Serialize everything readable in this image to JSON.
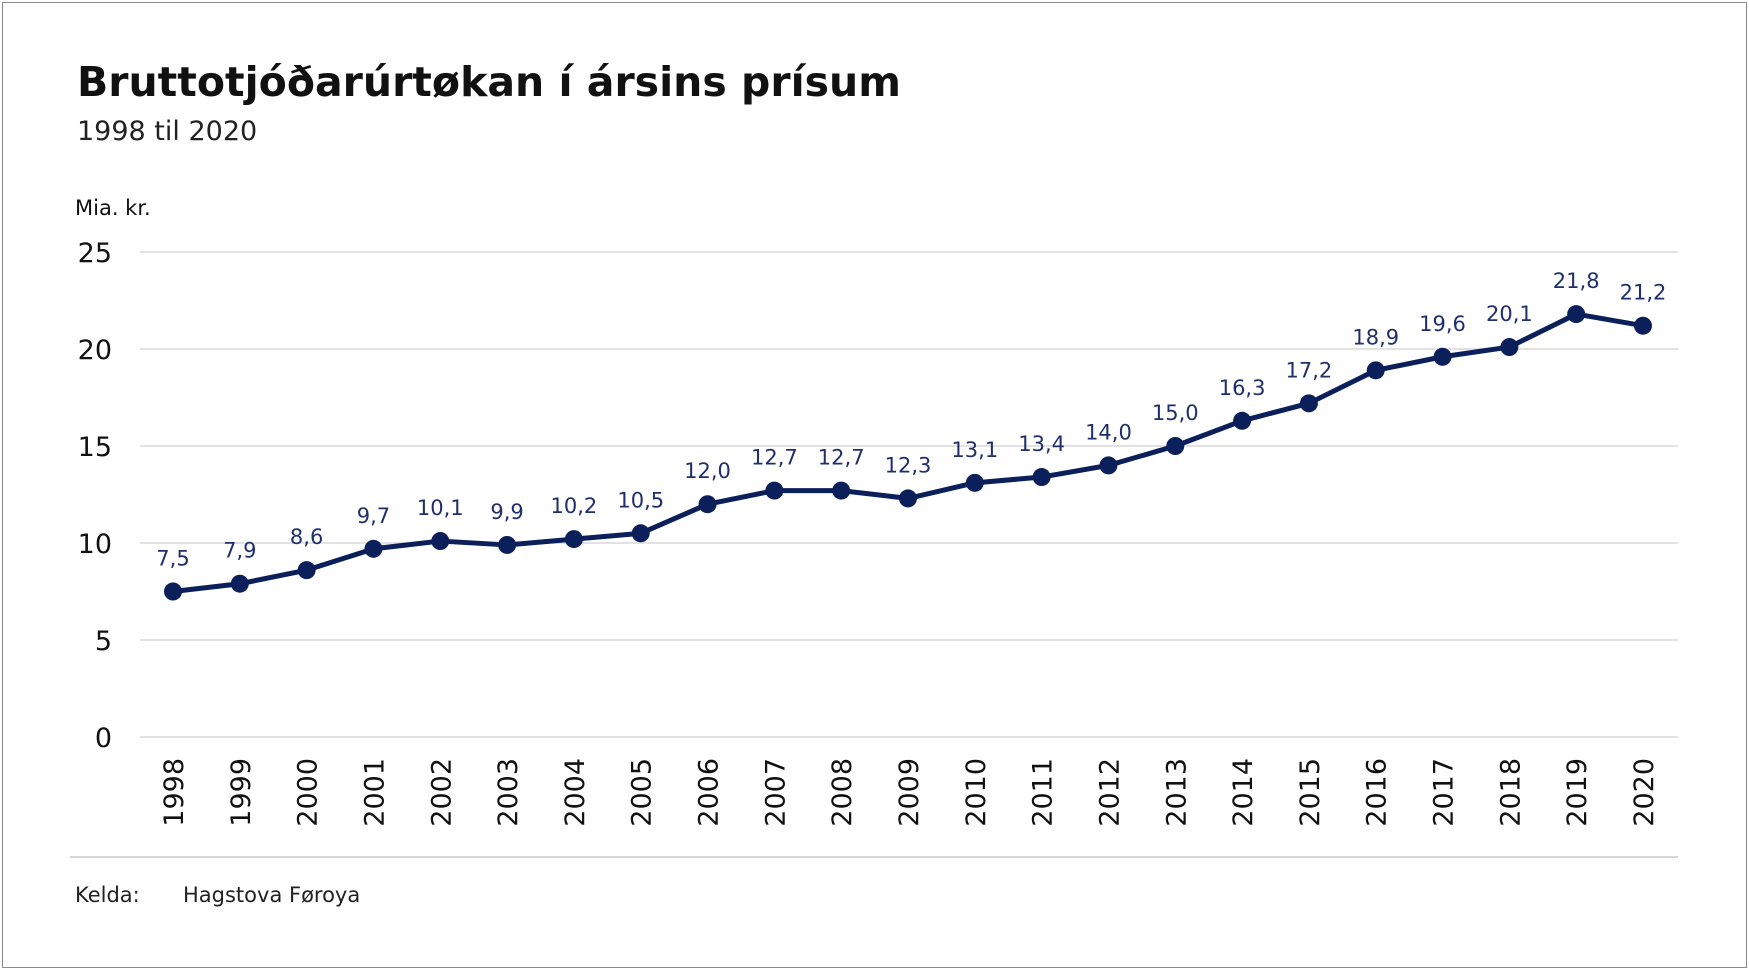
{
  "title": "Bruttotjóðarúrtøkan í ársins prísum",
  "subtitle": "1998 til 2020",
  "source": {
    "label": "Kelda:",
    "value": "Hagstova Føroya"
  },
  "colors": {
    "line": "#0b1f5b",
    "label": "#1f2f6b",
    "grid": "#d9d9d9"
  },
  "chart_data": {
    "type": "line",
    "title": "Bruttotjóðarúrtøkan í ársins prísum",
    "subtitle": "1998 til 2020",
    "ylabel": "Mia. kr.",
    "xlabel": "",
    "ylim": [
      0,
      25
    ],
    "yticks": [
      0,
      5,
      10,
      15,
      20,
      25
    ],
    "grid": true,
    "categories": [
      "1998",
      "1999",
      "2000",
      "2001",
      "2002",
      "2003",
      "2004",
      "2005",
      "2006",
      "2007",
      "2008",
      "2009",
      "2010",
      "2011",
      "2012",
      "2013",
      "2014",
      "2015",
      "2016",
      "2017",
      "2018",
      "2019",
      "2020"
    ],
    "values": [
      7.5,
      7.9,
      8.6,
      9.7,
      10.1,
      9.9,
      10.2,
      10.5,
      12.0,
      12.7,
      12.7,
      12.3,
      13.1,
      13.4,
      14.0,
      15.0,
      16.3,
      17.2,
      18.9,
      19.6,
      20.1,
      21.8,
      21.2
    ],
    "data_labels": [
      "7,5",
      "7,9",
      "8,6",
      "9,7",
      "10,1",
      "9,9",
      "10,2",
      "10,5",
      "12,0",
      "12,7",
      "12,7",
      "12,3",
      "13,1",
      "13,4",
      "14,0",
      "15,0",
      "16,3",
      "17,2",
      "18,9",
      "19,6",
      "20,1",
      "21,8",
      "21,2"
    ]
  }
}
